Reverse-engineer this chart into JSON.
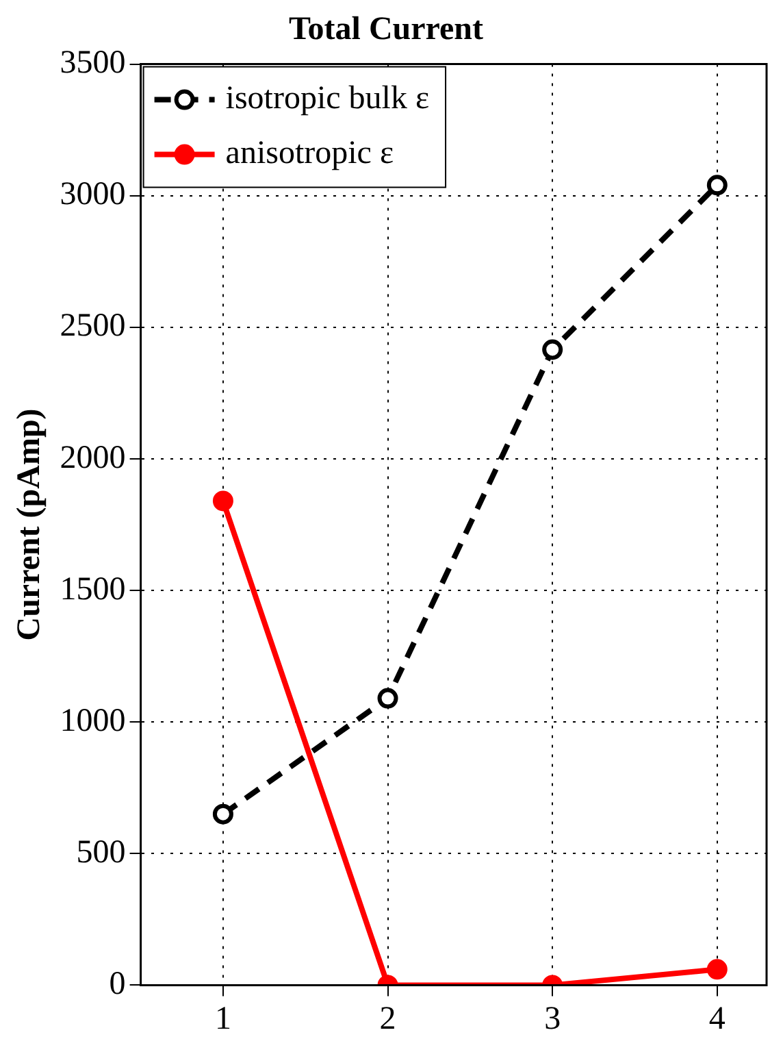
{
  "chart_data": {
    "type": "line",
    "title": "Total Current",
    "ylabel": "Current (pAmp)",
    "x": [
      1,
      2,
      3,
      4
    ],
    "series": [
      {
        "name": "isotropic bulk ε",
        "color": "#000000",
        "values": [
          650,
          1090,
          2415,
          3040
        ],
        "marker": "circle",
        "line_style": "dashed"
      },
      {
        "name": "anisotropic ε",
        "color": "#ff0000",
        "values": [
          1840,
          0,
          0,
          60
        ],
        "marker": "circle",
        "line_style": "solid"
      }
    ],
    "xlim": [
      0.5,
      4.3
    ],
    "xticks": [
      1,
      2,
      3,
      4
    ],
    "ylim": [
      0,
      3500
    ],
    "yticks": [
      0,
      500,
      1000,
      1500,
      2000,
      2500,
      3000,
      3500
    ],
    "grid": true,
    "legend": "top left"
  }
}
